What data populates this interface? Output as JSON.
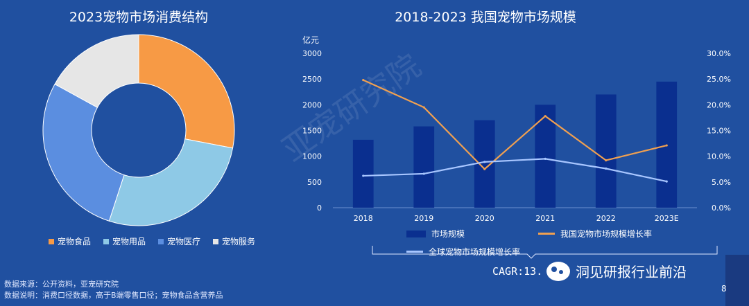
{
  "left_chart": {
    "title": "2023宠物市场消费结构",
    "chart_data": {
      "type": "pie",
      "title": "2023宠物市场消费结构",
      "categories": [
        "宠物食品",
        "宠物用品",
        "宠物医疗",
        "宠物服务"
      ],
      "values": [
        28,
        27,
        28,
        17
      ],
      "colors": [
        "#f79a45",
        "#8ec9e6",
        "#5b8ee0",
        "#e6e6e6"
      ]
    }
  },
  "right_chart": {
    "title": "2018-2023  我国宠物市场规模",
    "chart_data": {
      "type": "bar",
      "title": "2018-2023  我国宠物市场规模",
      "categories": [
        "2018",
        "2019",
        "2020",
        "2021",
        "2022",
        "2023E"
      ],
      "y_unit": "亿元",
      "ylim": [
        0,
        3000
      ],
      "y_ticks": [
        "0",
        "500",
        "1000",
        "1500",
        "2000",
        "2500",
        "3000"
      ],
      "y2lim": [
        0,
        0.3
      ],
      "y2_ticks": [
        "0.0%",
        "5.0%",
        "10.0%",
        "15.0%",
        "20.0%",
        "25.0%",
        "30.0%"
      ],
      "series": [
        {
          "name": "市场规模",
          "kind": "bar",
          "axis": "left",
          "values": [
            1320,
            1580,
            1700,
            2000,
            2200,
            2450
          ],
          "color": "#0a2f8f"
        },
        {
          "name": "我国宠物市场规模增长率",
          "kind": "line",
          "axis": "right",
          "values": [
            0.248,
            0.195,
            0.075,
            0.178,
            0.092,
            0.121
          ],
          "color": "#f0a050"
        },
        {
          "name": "全球宠物市场规模增长率",
          "kind": "line",
          "axis": "right",
          "values": [
            0.062,
            0.066,
            0.089,
            0.095,
            0.076,
            0.051
          ],
          "color": "#a8c6ff"
        }
      ]
    }
  },
  "cagr": "CAGR:13.",
  "footnote_1": "数据来源：公开资料，亚宠研究院",
  "footnote_2": "数据说明：消费口径数据，高于B端零售口径；宠物食品含营养品",
  "watermark": "亚宠研究院",
  "brand_text": "洞见研报行业前沿",
  "page_number": "8"
}
